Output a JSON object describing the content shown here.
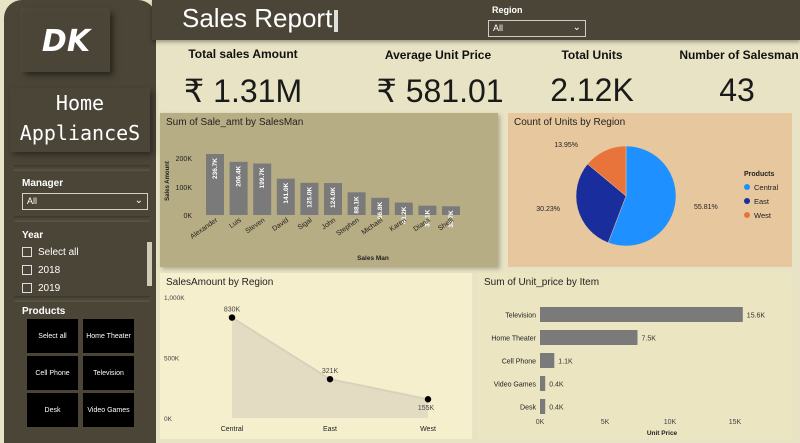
{
  "sidebar": {
    "logo": "DK",
    "app_name_line1": "Home",
    "app_name_line2": "AppliancеS",
    "manager_label": "Manager",
    "manager_value": "All",
    "year_label": "Year",
    "years": [
      "Select all",
      "2018",
      "2019"
    ],
    "products_label": "Products",
    "products": [
      "Select all",
      "Home Theater",
      "Cell Phone",
      "Television",
      "Desk",
      "Video Games"
    ]
  },
  "header": {
    "title": "Sales Report",
    "region_label": "Region",
    "region_value": "All"
  },
  "kpis": [
    {
      "title": "Total sales Amount",
      "value": "₹ 1.31M"
    },
    {
      "title": "Average Unit Price",
      "value": "₹ 581.01"
    },
    {
      "title": "Total Units",
      "value": "2.12K"
    },
    {
      "title": "Number of Salesman",
      "value": "43"
    }
  ],
  "colors": {
    "bar": "#7a7a7a",
    "pie_central": "#1e90ff",
    "pie_east": "#1a2d9c",
    "pie_west": "#e8743b"
  },
  "chart_data": [
    {
      "type": "bar",
      "title": "Sum of Sale_amt by SalesMan",
      "xlabel": "Sales Man",
      "ylabel": "Sales Amount",
      "categories": [
        "Alexander",
        "Luis",
        "Steven",
        "David",
        "Sigal",
        "John",
        "Stephen",
        "Michael",
        "Karen",
        "Diana",
        "Shelli"
      ],
      "values": [
        236.7,
        206.4,
        199.7,
        141.0,
        125.0,
        124.0,
        88.1,
        66.8,
        48.2,
        36.1,
        33.7
      ],
      "labels": [
        "236.7K",
        "206.4K",
        "199.7K",
        "141.0K",
        "125.0K",
        "124.0K",
        "88.1K",
        "66.8K",
        "48.2K",
        "36.1K",
        "33.7K"
      ],
      "yticks": [
        "200K",
        "100K",
        "0K"
      ],
      "ylim": [
        0,
        260
      ]
    },
    {
      "type": "pie",
      "title": "Count of Units by Region",
      "legend_title": "Products",
      "categories": [
        "Central",
        "East",
        "West"
      ],
      "values": [
        55.81,
        30.23,
        13.95
      ],
      "labels": [
        "55.81%",
        "30.23%",
        "13.95%"
      ]
    },
    {
      "type": "area",
      "title": "SalesAmount by Region",
      "categories": [
        "Central",
        "East",
        "West"
      ],
      "values": [
        830,
        321,
        155
      ],
      "labels": [
        "830K",
        "321K",
        "155K"
      ],
      "yticks": [
        "1,000K",
        "500K",
        "0K"
      ],
      "ylim": [
        0,
        1000
      ]
    },
    {
      "type": "bar",
      "title": "Sum of Unit_price by Item",
      "xlabel": "Unit Price",
      "categories": [
        "Television",
        "Home Theater",
        "Cell Phone",
        "Video Games",
        "Desk"
      ],
      "values": [
        15.6,
        7.5,
        1.1,
        0.4,
        0.4
      ],
      "labels": [
        "15.6K",
        "7.5K",
        "1.1K",
        "0.4K",
        "0.4K"
      ],
      "xticks": [
        "0K",
        "5K",
        "10K",
        "15K"
      ],
      "xlim": [
        0,
        16
      ]
    }
  ]
}
